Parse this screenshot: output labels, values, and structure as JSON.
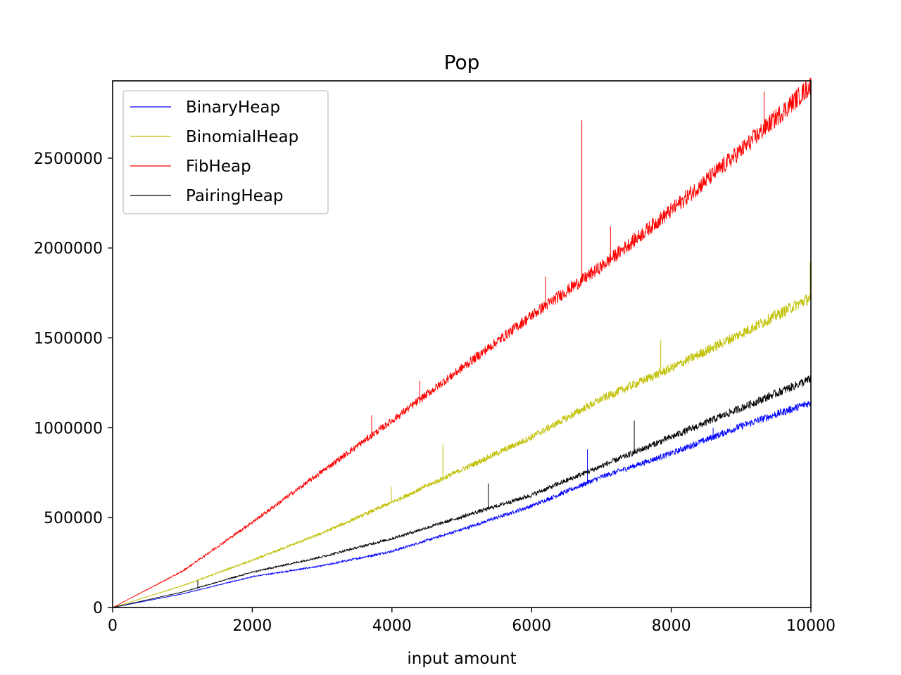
{
  "chart_data": {
    "type": "line",
    "title": "Pop",
    "xlabel": "input amount",
    "ylabel": "",
    "xlim": [
      0,
      10000
    ],
    "ylim": [
      0,
      2930000
    ],
    "xticks": [
      0,
      2000,
      4000,
      6000,
      8000,
      10000
    ],
    "xtick_labels": [
      "0",
      "2000",
      "4000",
      "6000",
      "8000",
      "10000"
    ],
    "yticks": [
      0,
      500000,
      1000000,
      1500000,
      2000000,
      2500000
    ],
    "ytick_labels": [
      "0",
      "500000",
      "1000000",
      "1500000",
      "2000000",
      "2500000"
    ],
    "grid": false,
    "legend_position": "upper-left",
    "x": [
      0,
      1000,
      2000,
      3000,
      4000,
      5000,
      6000,
      7000,
      8000,
      9000,
      10000
    ],
    "series": [
      {
        "name": "BinaryHeap",
        "color": "#0000ff",
        "values": [
          0,
          75000,
          170000,
          230000,
          310000,
          430000,
          560000,
          720000,
          850000,
          1000000,
          1130000
        ],
        "spikes": [
          [
            6800,
            880000
          ],
          [
            8600,
            1000000
          ]
        ]
      },
      {
        "name": "BinomialHeap",
        "color": "#bfbf00",
        "values": [
          0,
          120000,
          260000,
          410000,
          580000,
          760000,
          940000,
          1150000,
          1320000,
          1510000,
          1710000
        ],
        "spikes": [
          [
            3990,
            670000
          ],
          [
            4730,
            905000
          ],
          [
            7850,
            1490000
          ],
          [
            9990,
            1920000
          ]
        ]
      },
      {
        "name": "FibHeap",
        "color": "#ff0000",
        "values": [
          0,
          200000,
          470000,
          750000,
          1030000,
          1320000,
          1610000,
          1880000,
          2190000,
          2520000,
          2880000
        ],
        "spikes": [
          [
            3710,
            1070000
          ],
          [
            4400,
            1260000
          ],
          [
            6200,
            1840000
          ],
          [
            6720,
            2710000
          ],
          [
            7130,
            2120000
          ],
          [
            9330,
            2870000
          ]
        ]
      },
      {
        "name": "PairingHeap",
        "color": "#000000",
        "values": [
          0,
          85000,
          195000,
          280000,
          380000,
          500000,
          620000,
          780000,
          940000,
          1100000,
          1260000
        ],
        "spikes": [
          [
            1220,
            150000
          ],
          [
            5380,
            690000
          ],
          [
            7470,
            1040000
          ]
        ]
      }
    ]
  }
}
